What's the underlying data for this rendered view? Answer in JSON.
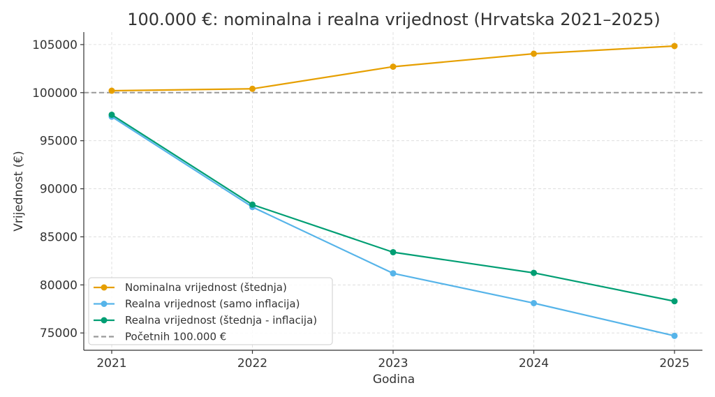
{
  "chart_data": {
    "type": "line",
    "title": "100.000 €: nominalna i realna vrijednost (Hrvatska 2021–2025)",
    "xlabel": "Godina",
    "ylabel": "Vrijednost (€)",
    "x": [
      2021,
      2022,
      2023,
      2024,
      2025
    ],
    "x_tick_labels": [
      "2021",
      "2022",
      "2023",
      "2024",
      "2025"
    ],
    "ylim": [
      73200,
      106300
    ],
    "y_ticks": [
      75000,
      80000,
      85000,
      90000,
      95000,
      100000,
      105000
    ],
    "y_tick_labels": [
      "75000",
      "80000",
      "85000",
      "90000",
      "95000",
      "100000",
      "105000"
    ],
    "grid": true,
    "legend_position": "bottom-left",
    "series": [
      {
        "name": "Nominalna vrijednost (štednja)",
        "color": "#E69F00",
        "marker": true,
        "dashed": false,
        "values": [
          100200,
          100400,
          102700,
          104050,
          104850
        ]
      },
      {
        "name": "Realna vrijednost (samo inflacija)",
        "color": "#56B4E9",
        "marker": true,
        "dashed": false,
        "values": [
          97500,
          88100,
          81200,
          78100,
          74700
        ]
      },
      {
        "name": "Realna vrijednost (štednja - inflacija)",
        "color": "#009E73",
        "marker": true,
        "dashed": false,
        "values": [
          97700,
          88350,
          83400,
          81250,
          78300
        ]
      }
    ],
    "reference_line": {
      "name": "Početnih 100.000 €",
      "value": 100000,
      "color": "#999999",
      "dashed": true
    }
  }
}
